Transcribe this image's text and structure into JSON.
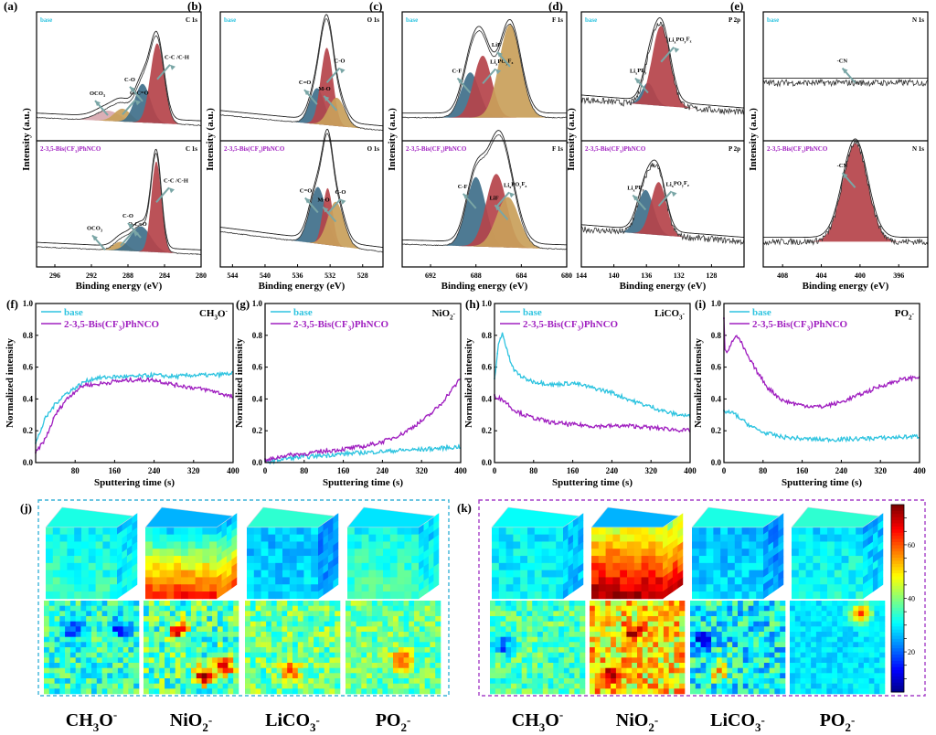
{
  "colors": {
    "base": "#2fc4e0",
    "additive": "#a020c0",
    "peak_red": "#b5434a",
    "peak_blue": "#3f6f8a",
    "peak_gold": "#c9a05a",
    "peak_pink": "#d8a8b0",
    "arrow": "#7aa6a6",
    "box_j": "#3bb4d8",
    "box_k": "#a640c8"
  },
  "chart_data": [
    {
      "panel": "(a)",
      "type": "area",
      "element": "C 1s",
      "xlabel": "Binding energy (eV)",
      "ylabel": "Intensity (a.u.)",
      "xlim": [
        298,
        280
      ],
      "xticks": [
        296,
        292,
        288,
        284,
        280
      ],
      "samples": [
        {
          "name": "base",
          "label_color": "base",
          "baseline": [
            0.18,
            0.12
          ],
          "peaks": [
            {
              "label": "OCO2",
              "center": 290.2,
              "height": 0.08,
              "width": 1.3,
              "color": "peak_pink"
            },
            {
              "label": "O-C=O",
              "center": 288.6,
              "height": 0.1,
              "width": 0.9,
              "color": "peak_gold"
            },
            {
              "label": "C-O",
              "center": 286.4,
              "height": 0.3,
              "width": 0.85,
              "color": "peak_blue"
            },
            {
              "label": "C-C /C-H",
              "center": 284.8,
              "height": 0.62,
              "width": 0.75,
              "color": "peak_red"
            }
          ]
        },
        {
          "name": "2-3,5-Bis(CF3)PhNCO",
          "label_color": "additive",
          "baseline": [
            0.16,
            0.1
          ],
          "peaks": [
            {
              "label": "OCO2",
              "center": 290.5,
              "height": 0.0,
              "width": 1.0,
              "color": "peak_pink"
            },
            {
              "label": "O-C=O",
              "center": 288.8,
              "height": 0.07,
              "width": 0.8,
              "color": "peak_gold"
            },
            {
              "label": "C-O",
              "center": 286.6,
              "height": 0.2,
              "width": 1.1,
              "color": "peak_blue"
            },
            {
              "label": "C-C /C-H",
              "center": 284.9,
              "height": 0.72,
              "width": 0.55,
              "color": "peak_red"
            }
          ]
        }
      ]
    },
    {
      "panel": "(b)",
      "type": "area",
      "element": "O 1s",
      "xlabel": "Binding energy (eV)",
      "ylabel": "Intensity (a.u.)",
      "xlim": [
        545.5,
        525.5
      ],
      "xticks": [
        544,
        540,
        536,
        532,
        528
      ],
      "samples": [
        {
          "name": "base",
          "label_color": "base",
          "baseline": [
            0.2,
            0.08
          ],
          "peaks": [
            {
              "label": "C=O",
              "center": 533.6,
              "height": 0.28,
              "width": 0.9,
              "color": "peak_blue"
            },
            {
              "label": "C-O",
              "center": 532.4,
              "height": 0.6,
              "width": 0.75,
              "color": "peak_red"
            },
            {
              "label": "M-O",
              "center": 531.2,
              "height": 0.22,
              "width": 1.0,
              "color": "peak_gold"
            }
          ]
        },
        {
          "name": "2-3,5-Bis(CF3)PhNCO",
          "label_color": "additive",
          "baseline": [
            0.28,
            0.12
          ],
          "peaks": [
            {
              "label": "C=O",
              "center": 533.5,
              "height": 0.45,
              "width": 1.0,
              "color": "peak_blue"
            },
            {
              "label": "C-O",
              "center": 532.3,
              "height": 0.45,
              "width": 0.6,
              "color": "peak_red"
            },
            {
              "label": "M-O",
              "center": 531.3,
              "height": 0.35,
              "width": 1.0,
              "color": "peak_gold"
            }
          ]
        }
      ]
    },
    {
      "panel": "(c)",
      "type": "area",
      "element": "F 1s",
      "xlabel": "Binding energy (eV)",
      "ylabel": "Intensity (a.u.)",
      "xlim": [
        694.5,
        680
      ],
      "xticks": [
        692,
        688,
        684,
        680
      ],
      "samples": [
        {
          "name": "base",
          "label_color": "base",
          "baseline": [
            0.18,
            0.18
          ],
          "peaks": [
            {
              "label": "C-F",
              "center": 688.5,
              "height": 0.35,
              "width": 0.8,
              "color": "peak_blue"
            },
            {
              "label": "LixPOyFz",
              "center": 687.4,
              "height": 0.48,
              "width": 0.8,
              "color": "peak_red"
            },
            {
              "label": "LiF",
              "center": 685.0,
              "height": 0.72,
              "width": 0.95,
              "color": "peak_gold"
            }
          ]
        },
        {
          "name": "2-3,5-Bis(CF3)PhNCO",
          "label_color": "additive",
          "baseline": [
            0.18,
            0.14
          ],
          "peaks": [
            {
              "label": "C-F",
              "center": 688.0,
              "height": 0.55,
              "width": 0.85,
              "color": "peak_blue"
            },
            {
              "label": "LixPOyFz",
              "center": 686.2,
              "height": 0.58,
              "width": 0.9,
              "color": "peak_red"
            },
            {
              "label": "LiF",
              "center": 685.2,
              "height": 0.4,
              "width": 1.0,
              "color": "peak_gold"
            }
          ]
        }
      ]
    },
    {
      "panel": "(d)",
      "type": "area",
      "element": "P 2p",
      "xlabel": "Binding energy (eV)",
      "ylabel": "Intensity (a.u.)",
      "xlim": [
        144,
        124
      ],
      "xticks": [
        144,
        140,
        136,
        132,
        128
      ],
      "noisy": true,
      "samples": [
        {
          "name": "base",
          "label_color": "base",
          "baseline": [
            0.32,
            0.22
          ],
          "peaks": [
            {
              "label": "LixPFy",
              "center": 135.8,
              "height": 0.17,
              "width": 0.8,
              "color": "peak_blue"
            },
            {
              "label": "LixPOyFz",
              "center": 134.2,
              "height": 0.62,
              "width": 1.1,
              "color": "peak_red"
            }
          ]
        },
        {
          "name": "2-3,5-Bis(CF3)PhNCO",
          "label_color": "additive",
          "baseline": [
            0.3,
            0.2
          ],
          "peaks": [
            {
              "label": "LixPFy",
              "center": 136.1,
              "height": 0.35,
              "width": 1.0,
              "color": "peak_blue"
            },
            {
              "label": "LixPOyFz",
              "center": 134.5,
              "height": 0.42,
              "width": 0.95,
              "color": "peak_red"
            }
          ]
        }
      ]
    },
    {
      "panel": "(e)",
      "type": "area",
      "element": "N 1s",
      "xlabel": "Binding energy (eV)",
      "ylabel": "Intensity (a.u.)",
      "xlim": [
        410,
        393
      ],
      "xticks": [
        408,
        404,
        400,
        396
      ],
      "noisy": true,
      "samples": [
        {
          "name": "base",
          "label_color": "base",
          "baseline": [
            0.45,
            0.45
          ],
          "peaks": [
            {
              "label": "-CN",
              "center": 400.5,
              "height": 0.0,
              "width": 1.0,
              "color": "peak_red"
            }
          ]
        },
        {
          "name": "2-3,5-Bis(CF3)PhNCO",
          "label_color": "additive",
          "baseline": [
            0.2,
            0.2
          ],
          "peaks": [
            {
              "label": "-CN",
              "center": 400.5,
              "height": 0.78,
              "width": 1.3,
              "color": "peak_red"
            }
          ]
        }
      ]
    },
    {
      "panel": "(f)",
      "type": "line",
      "ion": "CH3O-",
      "xlabel": "Sputtering time (s)",
      "ylabel": "Normalized intensity",
      "xlim": [
        0,
        400
      ],
      "ylim": [
        0,
        1.0
      ],
      "xticks": [
        80,
        160,
        240,
        320,
        400
      ],
      "yticks": [
        0.0,
        0.2,
        0.4,
        0.6,
        0.8,
        1.0
      ],
      "legend": "top-left",
      "series": [
        {
          "name": "base",
          "color": "base",
          "x": [
            0,
            20,
            40,
            60,
            80,
            100,
            120,
            160,
            200,
            240,
            280,
            320,
            360,
            400
          ],
          "y": [
            0.12,
            0.28,
            0.37,
            0.43,
            0.47,
            0.51,
            0.53,
            0.54,
            0.54,
            0.55,
            0.54,
            0.55,
            0.55,
            0.56
          ]
        },
        {
          "name": "2-3,5-Bis(CF3)PhNCO",
          "color": "additive",
          "x": [
            0,
            20,
            40,
            60,
            80,
            100,
            120,
            160,
            200,
            240,
            280,
            320,
            360,
            400
          ],
          "y": [
            0.06,
            0.15,
            0.3,
            0.39,
            0.45,
            0.49,
            0.49,
            0.51,
            0.52,
            0.52,
            0.49,
            0.47,
            0.45,
            0.41
          ]
        }
      ]
    },
    {
      "panel": "(g)",
      "type": "line",
      "ion": "NiO2-",
      "xlabel": "Sputtering time (s)",
      "ylabel": "Normalized intensity",
      "xlim": [
        0,
        400
      ],
      "ylim": [
        0,
        1.0
      ],
      "xticks": [
        0,
        80,
        160,
        240,
        320,
        400
      ],
      "yticks": [
        0.0,
        0.2,
        0.4,
        0.6,
        0.8,
        1.0
      ],
      "legend": "top-left",
      "series": [
        {
          "name": "base",
          "color": "base",
          "x": [
            0,
            40,
            80,
            120,
            160,
            200,
            240,
            280,
            320,
            360,
            400
          ],
          "y": [
            0.0,
            0.025,
            0.035,
            0.045,
            0.055,
            0.062,
            0.07,
            0.077,
            0.083,
            0.09,
            0.1
          ]
        },
        {
          "name": "2-3,5-Bis(CF3)PhNCO",
          "color": "additive",
          "x": [
            0,
            40,
            80,
            120,
            160,
            200,
            240,
            280,
            320,
            340,
            360,
            380,
            400
          ],
          "y": [
            0.01,
            0.045,
            0.055,
            0.07,
            0.085,
            0.1,
            0.13,
            0.18,
            0.26,
            0.31,
            0.37,
            0.45,
            0.53
          ]
        }
      ]
    },
    {
      "panel": "(h)",
      "type": "line",
      "ion": "LiCO3-",
      "xlabel": "Sputtering time (s)",
      "ylabel": "Normalized intensity",
      "xlim": [
        0,
        400
      ],
      "ylim": [
        0,
        1.0
      ],
      "xticks": [
        0,
        80,
        160,
        240,
        320,
        400
      ],
      "yticks": [
        0.0,
        0.2,
        0.4,
        0.6,
        0.8,
        1.0
      ],
      "legend": "top-left",
      "series": [
        {
          "name": "base",
          "color": "base",
          "x": [
            0,
            8,
            16,
            24,
            32,
            40,
            60,
            80,
            120,
            160,
            200,
            240,
            280,
            320,
            360,
            400
          ],
          "y": [
            0.52,
            0.74,
            0.82,
            0.72,
            0.64,
            0.58,
            0.53,
            0.51,
            0.49,
            0.5,
            0.47,
            0.44,
            0.39,
            0.35,
            0.31,
            0.29
          ]
        },
        {
          "name": "2-3,5-Bis(CF3)PhNCO",
          "color": "additive",
          "x": [
            0,
            20,
            40,
            60,
            80,
            120,
            160,
            200,
            240,
            280,
            320,
            360,
            400
          ],
          "y": [
            0.42,
            0.39,
            0.33,
            0.3,
            0.28,
            0.25,
            0.24,
            0.23,
            0.23,
            0.23,
            0.22,
            0.21,
            0.2
          ]
        }
      ]
    },
    {
      "panel": "(i)",
      "type": "line",
      "ion": "PO2-",
      "xlabel": "Sputtering time (s)",
      "ylabel": "Normalized intensity",
      "xlim": [
        0,
        400
      ],
      "ylim": [
        0,
        1.0
      ],
      "xticks": [
        0,
        80,
        160,
        240,
        320,
        400
      ],
      "yticks": [
        0.0,
        0.2,
        0.4,
        0.6,
        0.8,
        1.0
      ],
      "legend": "top-left",
      "series": [
        {
          "name": "base",
          "color": "base",
          "x": [
            0,
            20,
            40,
            60,
            80,
            120,
            160,
            200,
            240,
            280,
            320,
            360,
            400
          ],
          "y": [
            0.32,
            0.31,
            0.26,
            0.22,
            0.19,
            0.16,
            0.15,
            0.145,
            0.145,
            0.15,
            0.155,
            0.16,
            0.165
          ]
        },
        {
          "name": "2-3,5-Bis(CF3)PhNCO",
          "color": "additive",
          "x": [
            0,
            2,
            6,
            14,
            24,
            34,
            50,
            70,
            90,
            120,
            160,
            200,
            240,
            280,
            320,
            360,
            400
          ],
          "y": [
            0.9,
            0.72,
            0.7,
            0.74,
            0.8,
            0.76,
            0.66,
            0.56,
            0.47,
            0.39,
            0.36,
            0.35,
            0.38,
            0.43,
            0.48,
            0.52,
            0.54
          ]
        }
      ]
    }
  ],
  "heatmaps": {
    "j": {
      "tag": "(j)",
      "sample": "base",
      "border_color": "box_j",
      "ions": [
        "CH3O-",
        "NiO2-",
        "LiCO3-",
        "PO2-"
      ]
    },
    "k": {
      "tag": "(k)",
      "sample": "2-3,5-Bis(CF3)PhNCO",
      "border_color": "box_k",
      "ions": [
        "CH3O-",
        "NiO2-",
        "LiCO3-",
        "PO2-"
      ],
      "colorbar": {
        "ticks": [
          20,
          40,
          60
        ],
        "min": 5,
        "max": 75
      }
    }
  },
  "ion_labels": [
    {
      "main": "CH",
      "sub": "3",
      "rest": "O",
      "sup": "-"
    },
    {
      "main": "NiO",
      "sub": "2",
      "rest": "",
      "sup": "-"
    },
    {
      "main": "LiCO",
      "sub": "3",
      "rest": "",
      "sup": "-"
    },
    {
      "main": "PO",
      "sub": "2",
      "rest": "",
      "sup": "-"
    }
  ],
  "text": {
    "xps_xlabel": "Binding energy (eV)",
    "xps_ylabel": "Intensity (a.u.)",
    "tof_xlabel": "Sputtering time (s)",
    "tof_ylabel": "Normalized intensity",
    "base_label": "base",
    "additive_label": "2-3,5-Bis(CF3)PhNCO"
  }
}
